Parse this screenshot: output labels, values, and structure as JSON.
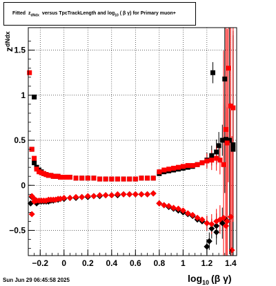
{
  "title": {
    "prefix": "Fitted",
    "z_main": "z",
    "z_sub": "dNdx",
    "versus": "versus TpcTrackLength and log",
    "log_sub": "10",
    "bg": "( β γ)",
    "suffix": "for Primary muon+"
  },
  "timestamp": "Sun Jun 29 06:45:58 2025",
  "colors": {
    "series_black": "#000000",
    "series_red": "#ff0000",
    "axis": "#000000",
    "grid": "#000000"
  },
  "chart_data": {
    "type": "scatter",
    "xlabel_main": "log",
    "xlabel_sub": "10",
    "xlabel_tail": "(β γ)",
    "ylabel_main": "z",
    "ylabel_sub": "dNdx",
    "xlim": [
      -0.3,
      1.45
    ],
    "ylim": [
      -0.78,
      1.75
    ],
    "x_ticks": [
      -0.2,
      0,
      0.2,
      0.4,
      0.6,
      0.8,
      1,
      1.2,
      1.4
    ],
    "x_tick_labels": [
      "−0.2",
      "0",
      "0.2",
      "0.4",
      "0.6",
      "0.8",
      "1",
      "1.2",
      "1.4"
    ],
    "y_ticks": [
      -0.5,
      0,
      0.5,
      1,
      1.5
    ],
    "y_tick_labels": [
      "−0.5",
      "0",
      "0.5",
      "1",
      "1.5"
    ],
    "grid": true,
    "series": [
      {
        "color": "black",
        "upper": [
          [
            -0.27,
            0.4
          ],
          [
            -0.25,
            0.25
          ],
          [
            -0.23,
            0.2
          ],
          [
            -0.21,
            0.17
          ],
          [
            -0.19,
            0.15
          ],
          [
            -0.17,
            0.13
          ],
          [
            -0.15,
            0.12
          ],
          [
            -0.13,
            0.11
          ],
          [
            -0.11,
            0.11
          ],
          [
            -0.09,
            0.1
          ],
          [
            -0.07,
            0.1
          ],
          [
            -0.05,
            0.1
          ],
          [
            -0.03,
            0.09
          ],
          [
            -0.01,
            0.09
          ],
          [
            0.02,
            0.09
          ],
          [
            0.05,
            0.09
          ],
          [
            0.1,
            0.08
          ],
          [
            0.15,
            0.08
          ],
          [
            0.2,
            0.08
          ],
          [
            0.25,
            0.08
          ],
          [
            0.3,
            0.07
          ],
          [
            0.35,
            0.07
          ],
          [
            0.4,
            0.07
          ],
          [
            0.45,
            0.07
          ],
          [
            0.5,
            0.07
          ],
          [
            0.55,
            0.07
          ],
          [
            0.6,
            0.07
          ],
          [
            0.65,
            0.08
          ],
          [
            0.7,
            0.08
          ],
          [
            0.75,
            0.08
          ],
          [
            0.8,
            0.13
          ],
          [
            0.84,
            0.15
          ],
          [
            0.88,
            0.16
          ],
          [
            0.92,
            0.17
          ],
          [
            0.96,
            0.18
          ],
          [
            1.0,
            0.19
          ],
          [
            1.04,
            0.2
          ],
          [
            1.08,
            0.21
          ],
          [
            1.12,
            0.23
          ],
          [
            1.16,
            0.25
          ],
          [
            1.2,
            0.28
          ],
          [
            1.24,
            0.33
          ],
          [
            1.28,
            0.37
          ],
          [
            1.3,
            0.44
          ],
          [
            1.33,
            0.5
          ],
          [
            1.36,
            0.51
          ],
          [
            1.39,
            0.5
          ],
          [
            1.42,
            0.45
          ]
        ],
        "lower": [
          [
            -0.27,
            -0.13
          ],
          [
            -0.25,
            -0.15
          ],
          [
            -0.23,
            -0.17
          ],
          [
            -0.21,
            -0.18
          ],
          [
            -0.19,
            -0.18
          ],
          [
            -0.17,
            -0.18
          ],
          [
            -0.15,
            -0.18
          ],
          [
            -0.13,
            -0.18
          ],
          [
            -0.11,
            -0.17
          ],
          [
            -0.09,
            -0.17
          ],
          [
            -0.07,
            -0.16
          ],
          [
            -0.05,
            -0.16
          ],
          [
            -0.03,
            -0.15
          ],
          [
            0.0,
            -0.15
          ],
          [
            0.05,
            -0.14
          ],
          [
            0.1,
            -0.14
          ],
          [
            0.15,
            -0.13
          ],
          [
            0.2,
            -0.13
          ],
          [
            0.25,
            -0.12
          ],
          [
            0.3,
            -0.12
          ],
          [
            0.35,
            -0.11
          ],
          [
            0.4,
            -0.11
          ],
          [
            0.45,
            -0.11
          ],
          [
            0.5,
            -0.1
          ],
          [
            0.55,
            -0.1
          ],
          [
            0.6,
            -0.1
          ],
          [
            0.65,
            -0.1
          ],
          [
            0.7,
            -0.1
          ],
          [
            0.75,
            -0.09
          ],
          [
            0.8,
            -0.2
          ],
          [
            0.84,
            -0.22
          ],
          [
            0.88,
            -0.24
          ],
          [
            0.92,
            -0.26
          ],
          [
            0.96,
            -0.28
          ],
          [
            1.0,
            -0.3
          ],
          [
            1.04,
            -0.32
          ],
          [
            1.08,
            -0.34
          ],
          [
            1.12,
            -0.38
          ],
          [
            1.16,
            -0.4
          ],
          [
            1.2,
            -0.42
          ],
          [
            1.24,
            -0.48
          ],
          [
            1.28,
            -0.45
          ],
          [
            1.33,
            -0.42
          ],
          [
            1.36,
            -0.38
          ],
          [
            1.4,
            -0.35
          ]
        ],
        "outliers": [
          [
            -0.28,
            -0.2
          ],
          [
            -0.25,
            0.98
          ],
          [
            -0.23,
            -0.2
          ],
          [
            1.25,
            1.25
          ],
          [
            1.35,
            1.18
          ],
          [
            1.42,
            0.4
          ],
          [
            1.22,
            -0.62
          ],
          [
            1.28,
            -0.52
          ],
          [
            1.2,
            -0.68
          ]
        ]
      },
      {
        "color": "red",
        "upper": [
          [
            -0.29,
            1.25
          ],
          [
            -0.27,
            0.4
          ],
          [
            -0.25,
            0.3
          ],
          [
            -0.23,
            0.18
          ],
          [
            -0.21,
            0.15
          ],
          [
            -0.19,
            0.14
          ],
          [
            -0.17,
            0.13
          ],
          [
            -0.15,
            0.12
          ],
          [
            -0.13,
            0.11
          ],
          [
            -0.11,
            0.11
          ],
          [
            -0.09,
            0.1
          ],
          [
            -0.07,
            0.1
          ],
          [
            -0.05,
            0.1
          ],
          [
            -0.03,
            0.09
          ],
          [
            -0.01,
            0.09
          ],
          [
            0.02,
            0.09
          ],
          [
            0.05,
            0.09
          ],
          [
            0.1,
            0.08
          ],
          [
            0.15,
            0.08
          ],
          [
            0.2,
            0.08
          ],
          [
            0.25,
            0.08
          ],
          [
            0.3,
            0.07
          ],
          [
            0.35,
            0.07
          ],
          [
            0.4,
            0.07
          ],
          [
            0.45,
            0.07
          ],
          [
            0.5,
            0.07
          ],
          [
            0.55,
            0.07
          ],
          [
            0.6,
            0.07
          ],
          [
            0.65,
            0.08
          ],
          [
            0.7,
            0.08
          ],
          [
            0.75,
            0.08
          ],
          [
            0.8,
            0.15
          ],
          [
            0.84,
            0.17
          ],
          [
            0.88,
            0.18
          ],
          [
            0.92,
            0.19
          ],
          [
            0.96,
            0.2
          ],
          [
            1.0,
            0.21
          ],
          [
            1.04,
            0.22
          ],
          [
            1.08,
            0.22
          ],
          [
            1.12,
            0.23
          ],
          [
            1.16,
            0.25
          ],
          [
            1.2,
            0.27
          ],
          [
            1.24,
            0.28
          ],
          [
            1.28,
            0.3
          ],
          [
            1.31,
            0.28
          ],
          [
            1.34,
            0.23
          ],
          [
            1.37,
            0.47
          ],
          [
            1.4,
            0.88
          ]
        ],
        "lower": [
          [
            -0.27,
            -0.12
          ],
          [
            -0.25,
            -0.15
          ],
          [
            -0.23,
            -0.17
          ],
          [
            -0.21,
            -0.17
          ],
          [
            -0.19,
            -0.17
          ],
          [
            -0.17,
            -0.17
          ],
          [
            -0.15,
            -0.17
          ],
          [
            -0.13,
            -0.16
          ],
          [
            -0.11,
            -0.16
          ],
          [
            -0.09,
            -0.16
          ],
          [
            -0.07,
            -0.16
          ],
          [
            -0.05,
            -0.15
          ],
          [
            -0.03,
            -0.15
          ],
          [
            0.0,
            -0.14
          ],
          [
            0.05,
            -0.14
          ],
          [
            0.1,
            -0.13
          ],
          [
            0.15,
            -0.13
          ],
          [
            0.2,
            -0.12
          ],
          [
            0.25,
            -0.12
          ],
          [
            0.3,
            -0.11
          ],
          [
            0.35,
            -0.11
          ],
          [
            0.4,
            -0.11
          ],
          [
            0.45,
            -0.1
          ],
          [
            0.5,
            -0.1
          ],
          [
            0.55,
            -0.1
          ],
          [
            0.6,
            -0.1
          ],
          [
            0.65,
            -0.1
          ],
          [
            0.7,
            -0.1
          ],
          [
            0.75,
            -0.09
          ],
          [
            0.8,
            -0.2
          ],
          [
            0.84,
            -0.22
          ],
          [
            0.88,
            -0.23
          ],
          [
            0.92,
            -0.25
          ],
          [
            0.96,
            -0.26
          ],
          [
            1.0,
            -0.28
          ],
          [
            1.04,
            -0.31
          ],
          [
            1.08,
            -0.33
          ],
          [
            1.12,
            -0.36
          ],
          [
            1.16,
            -0.38
          ],
          [
            1.2,
            -0.42
          ],
          [
            1.24,
            -0.43
          ],
          [
            1.28,
            -0.4
          ],
          [
            1.31,
            -0.38
          ],
          [
            1.34,
            -0.36
          ],
          [
            1.37,
            -0.4
          ],
          [
            1.4,
            -0.35
          ]
        ],
        "outliers": [
          [
            -0.27,
            -0.32
          ],
          [
            -0.25,
            -0.18
          ],
          [
            1.36,
            0.62
          ],
          [
            1.38,
            1.3
          ],
          [
            1.42,
            0.86
          ],
          [
            1.41,
            -0.72
          ],
          [
            1.36,
            -0.45
          ]
        ]
      }
    ]
  }
}
